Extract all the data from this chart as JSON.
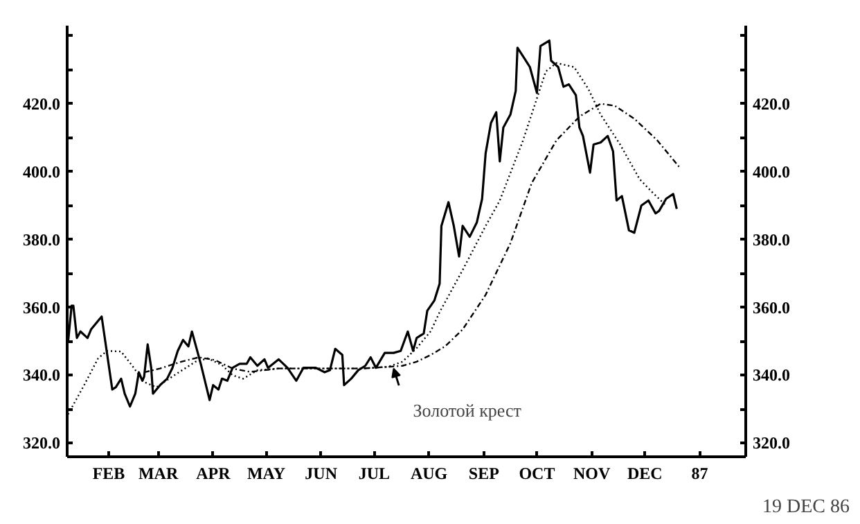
{
  "chart_data": {
    "type": "line",
    "xlim": [
      "1986-01-08T12:00",
      "1987-01-27"
    ],
    "ylim": [
      316,
      443
    ],
    "y2lim": [
      316,
      443
    ],
    "xticks": [
      {
        "value": "1986-02-01",
        "label": "FEB"
      },
      {
        "value": "1986-03-01",
        "label": "MAR"
      },
      {
        "value": "1986-04-01",
        "label": "APR"
      },
      {
        "value": "1986-05-01",
        "label": "MAY"
      },
      {
        "value": "1986-06-01",
        "label": "JUN"
      },
      {
        "value": "1986-07-01",
        "label": "JUL"
      },
      {
        "value": "1986-08-01",
        "label": "AUG"
      },
      {
        "value": "1986-09-01",
        "label": "SEP"
      },
      {
        "value": "1986-10-01",
        "label": "OCT"
      },
      {
        "value": "1986-11-01",
        "label": "NOV"
      },
      {
        "value": "1986-12-01",
        "label": "DEC"
      },
      {
        "value": "1987-01-01",
        "label": "87"
      }
    ],
    "yticks": [
      {
        "value": 320,
        "label": "320.0"
      },
      {
        "value": 330,
        "label": null
      },
      {
        "value": 340,
        "label": "340.0"
      },
      {
        "value": 350,
        "label": null
      },
      {
        "value": 360,
        "label": "360.0"
      },
      {
        "value": 370,
        "label": null
      },
      {
        "value": 380,
        "label": "380.0"
      },
      {
        "value": 390,
        "label": null
      },
      {
        "value": 400,
        "label": "400.0"
      },
      {
        "value": 410,
        "label": null
      },
      {
        "value": 420,
        "label": "420.0"
      },
      {
        "value": 430,
        "label": null
      },
      {
        "value": 440,
        "label": null
      }
    ],
    "y2ticks": [
      {
        "value": 320,
        "label": "320.0"
      },
      {
        "value": 330,
        "label": null
      },
      {
        "value": 340,
        "label": "340.0"
      },
      {
        "value": 350,
        "label": null
      },
      {
        "value": 360,
        "label": "360.0"
      },
      {
        "value": 370,
        "label": null
      },
      {
        "value": 380,
        "label": "380.0"
      },
      {
        "value": 390,
        "label": null
      },
      {
        "value": 400,
        "label": "400.0"
      },
      {
        "value": 410,
        "label": null
      },
      {
        "value": 420,
        "label": "420.0"
      },
      {
        "value": 430,
        "label": null
      },
      {
        "value": 440,
        "label": null
      }
    ],
    "marker": "none",
    "series": [
      {
        "color": "#000000",
        "line_style": "solid",
        "x": [
          "1986-01-09",
          "1986-01-11",
          "1986-01-12",
          "1986-01-14",
          "1986-01-16",
          "1986-01-20",
          "1986-01-22",
          "1986-01-24",
          "1986-01-28",
          "1986-02-03",
          "1986-02-05",
          "1986-02-08",
          "1986-02-10",
          "1986-02-13",
          "1986-02-16",
          "1986-02-18",
          "1986-02-20",
          "1986-02-21",
          "1986-02-23",
          "1986-02-25",
          "1986-02-26",
          "1986-03-02",
          "1986-03-06",
          "1986-03-09",
          "1986-03-12",
          "1986-03-15",
          "1986-03-18",
          "1986-03-20",
          "1986-03-23",
          "1986-03-25",
          "1986-03-30",
          "1986-04-01",
          "1986-04-04",
          "1986-04-06",
          "1986-04-09",
          "1986-04-12",
          "1986-04-16",
          "1986-04-20",
          "1986-04-22",
          "1986-04-26",
          "1986-04-30",
          "1986-05-02",
          "1986-05-08",
          "1986-05-13",
          "1986-05-18",
          "1986-05-22",
          "1986-05-29",
          "1986-06-03",
          "1986-06-06",
          "1986-06-09",
          "1986-06-13",
          "1986-06-14",
          "1986-06-18",
          "1986-06-22",
          "1986-06-26",
          "1986-06-29",
          "1986-07-02",
          "1986-07-07",
          "1986-07-12",
          "1986-07-16",
          "1986-07-20",
          "1986-07-23",
          "1986-07-25",
          "1986-07-29",
          "1986-07-31",
          "1986-08-04",
          "1986-08-07",
          "1986-08-08",
          "1986-08-12",
          "1986-08-15",
          "1986-08-18",
          "1986-08-20",
          "1986-08-24",
          "1986-08-28",
          "1986-08-31",
          "1986-09-02",
          "1986-09-05",
          "1986-09-08",
          "1986-09-10",
          "1986-09-12",
          "1986-09-16",
          "1986-09-19",
          "1986-09-20",
          "1986-09-24",
          "1986-09-27",
          "1986-10-01",
          "1986-10-03",
          "1986-10-08",
          "1986-10-09",
          "1986-10-13",
          "1986-10-16",
          "1986-10-19",
          "1986-10-23",
          "1986-10-25",
          "1986-10-27",
          "1986-10-31",
          "1986-11-02",
          "1986-11-06",
          "1986-11-10",
          "1986-11-13",
          "1986-11-15",
          "1986-11-18",
          "1986-11-22",
          "1986-11-25",
          "1986-11-29",
          "1986-12-03",
          "1986-12-07",
          "1986-12-09",
          "1986-12-13",
          "1986-12-17",
          "1986-12-19"
        ],
        "values": [
          349.7,
          360.5,
          360.5,
          351,
          352.9,
          351,
          353.5,
          354.8,
          357.3,
          335.8,
          336.5,
          339,
          334.6,
          330.8,
          334.6,
          340.9,
          338.4,
          339.6,
          349.1,
          342.2,
          334.6,
          337.1,
          339,
          342.2,
          347.2,
          350.4,
          348.5,
          352.9,
          347.2,
          343.4,
          332.7,
          337.1,
          335.8,
          339,
          338.4,
          342.2,
          343.4,
          343.4,
          345.3,
          342.8,
          344.7,
          342.2,
          344.7,
          342.2,
          338.4,
          342.2,
          342.2,
          340.9,
          341.5,
          347.8,
          346,
          337.1,
          339,
          341.5,
          342.8,
          345.3,
          342.2,
          346.6,
          346.6,
          347.2,
          352.9,
          347.2,
          351,
          352.3,
          359,
          362,
          367,
          384,
          391,
          384,
          375,
          384,
          380.8,
          385,
          392,
          405.4,
          414.3,
          417.5,
          403,
          413,
          416.8,
          423.8,
          436.5,
          433.3,
          430.8,
          423.2,
          437,
          438.6,
          432.7,
          430.8,
          425,
          425.7,
          422.5,
          413,
          410.5,
          399.7,
          408,
          408.6,
          410.5,
          406,
          391.5,
          392.8,
          382.7,
          382,
          390,
          391.5,
          387.7,
          388.4,
          392,
          393.4,
          389
        ]
      },
      {
        "color": "#000000",
        "line_style": "dotted",
        "x": [
          "1986-01-09",
          "1986-01-18",
          "1986-01-26",
          "1986-01-31",
          "1986-02-08",
          "1986-02-14",
          "1986-02-21",
          "1986-02-28",
          "1986-03-10",
          "1986-03-22",
          "1986-03-29",
          "1986-04-06",
          "1986-04-12",
          "1986-04-18",
          "1986-04-26",
          "1986-05-08",
          "1986-05-31",
          "1986-06-24",
          "1986-07-09",
          "1986-07-17",
          "1986-07-25",
          "1986-08-02",
          "1986-08-07",
          "1986-08-20",
          "1986-09-02",
          "1986-09-10",
          "1986-09-23",
          "1986-10-06",
          "1986-10-12",
          "1986-10-22",
          "1986-10-30",
          "1986-11-06",
          "1986-11-17",
          "1986-11-28",
          "1986-12-05",
          "1986-12-13"
        ],
        "values": [
          328.5,
          337,
          345,
          347.2,
          347,
          343,
          338,
          336.5,
          340,
          344,
          345,
          343,
          340,
          339,
          341.5,
          342,
          342,
          342,
          342.5,
          344,
          348,
          353,
          358.6,
          371,
          384,
          391.5,
          409,
          429.5,
          432,
          430.8,
          424.4,
          416.8,
          408,
          397.8,
          394,
          390
        ]
      },
      {
        "color": "#000000",
        "line_style": "dashed",
        "x": [
          "1986-02-21",
          "1986-03-02",
          "1986-03-14",
          "1986-03-24",
          "1986-04-02",
          "1986-04-12",
          "1986-04-22",
          "1986-05-08",
          "1986-05-31",
          "1986-06-24",
          "1986-07-09",
          "1986-07-17",
          "1986-07-25",
          "1986-08-02",
          "1986-08-10",
          "1986-08-20",
          "1986-09-02",
          "1986-09-16",
          "1986-09-28",
          "1986-10-12",
          "1986-10-25",
          "1986-11-06",
          "1986-11-14",
          "1986-11-25",
          "1986-12-08",
          "1986-12-21"
        ],
        "values": [
          340.9,
          342,
          344,
          345.3,
          344.5,
          342,
          341,
          342,
          342,
          342,
          342.5,
          342.8,
          344,
          346,
          348.5,
          353.5,
          363.7,
          378.9,
          396.6,
          409.2,
          416.2,
          420,
          419.4,
          415.6,
          409.2,
          401
        ]
      }
    ],
    "annotations": [
      {
        "text": "Золотой крест",
        "x": "1986-07-12",
        "y": 342
      },
      "19 DEC 86"
    ]
  }
}
